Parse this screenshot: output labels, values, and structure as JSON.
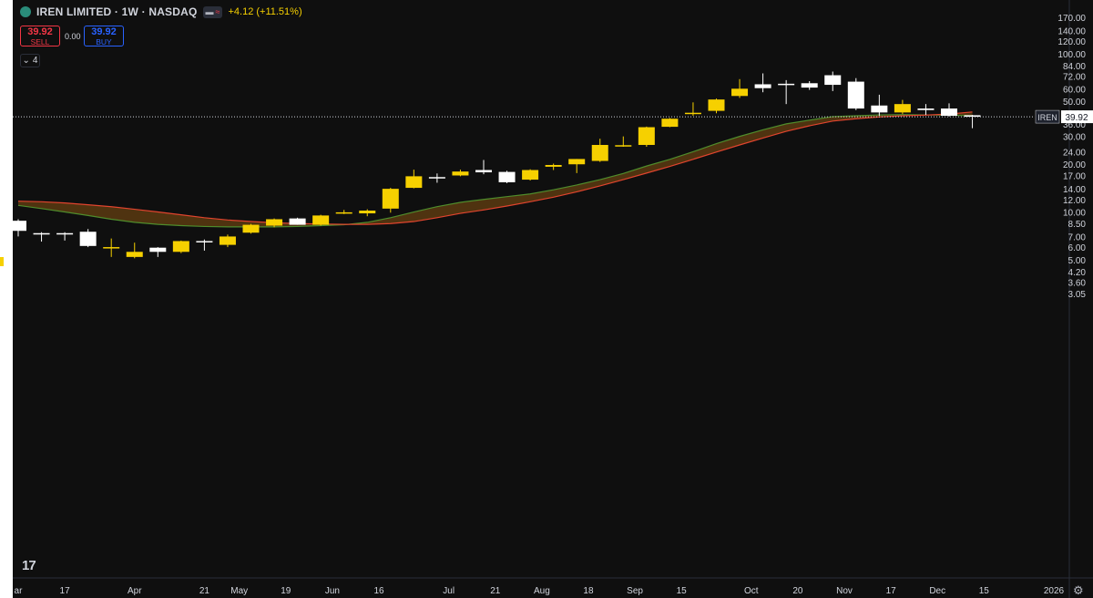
{
  "header": {
    "title": "IREN LIMITED · 1W · NASDAQ",
    "change": "+4.12 (+11.51%)",
    "pill_left": "▬",
    "pill_right": "≈",
    "sell_price": "39.92",
    "sell_label": "SELL",
    "spread": "0.00",
    "buy_price": "39.92",
    "buy_label": "BUY",
    "collapse_count": "4"
  },
  "price_tag": {
    "symbol": "IREN",
    "value": "39.92"
  },
  "logo": "17",
  "colors": {
    "up": "#f6d000",
    "down": "#ffffff",
    "fast_line": "#4f8c2c",
    "slow_line": "#e0442e",
    "band_fill": "#5a3a10",
    "axis_text": "#d1d4dc",
    "background": "#0f0f0f"
  },
  "chart_data": {
    "type": "candlestick",
    "scale": "log",
    "ylim": [
      3.0,
      170
    ],
    "y_ticks": [
      "170.00",
      "140.00",
      "120.00",
      "100.00",
      "84.00",
      "72.00",
      "60.00",
      "50.00",
      "42.00",
      "36.00",
      "30.00",
      "24.00",
      "20.00",
      "17.00",
      "14.00",
      "12.00",
      "10.00",
      "8.50",
      "7.00",
      "6.00",
      "5.00",
      "4.20",
      "3.60",
      "3.05"
    ],
    "x_labels": [
      {
        "text": "ar",
        "week": 0
      },
      {
        "text": "17",
        "week": 2
      },
      {
        "text": "Apr",
        "week": 5
      },
      {
        "text": "21",
        "week": 8
      },
      {
        "text": "May",
        "week": 9.5
      },
      {
        "text": "19",
        "week": 11.5
      },
      {
        "text": "Jun",
        "week": 13.5
      },
      {
        "text": "16",
        "week": 15.5
      },
      {
        "text": "Jul",
        "week": 18.5
      },
      {
        "text": "21",
        "week": 20.5
      },
      {
        "text": "Aug",
        "week": 22.5
      },
      {
        "text": "18",
        "week": 24.5
      },
      {
        "text": "Sep",
        "week": 26.5
      },
      {
        "text": "15",
        "week": 28.5
      },
      {
        "text": "Oct",
        "week": 31.5
      },
      {
        "text": "20",
        "week": 33.5
      },
      {
        "text": "Nov",
        "week": 35.5
      },
      {
        "text": "17",
        "week": 37.5
      },
      {
        "text": "Dec",
        "week": 39.5
      },
      {
        "text": "15",
        "week": 41.5
      },
      {
        "text": "2026",
        "week": 44.5
      }
    ],
    "last_price": 39.92,
    "candles": [
      {
        "o": 8.8,
        "h": 9.0,
        "l": 7.0,
        "c": 7.6
      },
      {
        "o": 7.35,
        "h": 7.45,
        "l": 6.5,
        "c": 7.3
      },
      {
        "o": 7.35,
        "h": 7.45,
        "l": 6.6,
        "c": 7.3
      },
      {
        "o": 7.5,
        "h": 7.8,
        "l": 6.0,
        "c": 6.1
      },
      {
        "o": 5.9,
        "h": 6.8,
        "l": 5.2,
        "c": 6.0
      },
      {
        "o": 5.2,
        "h": 6.4,
        "l": 5.1,
        "c": 5.6
      },
      {
        "o": 5.95,
        "h": 6.0,
        "l": 5.2,
        "c": 5.6
      },
      {
        "o": 5.6,
        "h": 6.6,
        "l": 5.5,
        "c": 6.55
      },
      {
        "o": 6.55,
        "h": 6.7,
        "l": 5.7,
        "c": 6.5
      },
      {
        "o": 6.2,
        "h": 7.2,
        "l": 6.0,
        "c": 7.0
      },
      {
        "o": 7.4,
        "h": 8.4,
        "l": 7.3,
        "c": 8.3
      },
      {
        "o": 8.2,
        "h": 9.1,
        "l": 8.0,
        "c": 9.0
      },
      {
        "o": 9.1,
        "h": 9.2,
        "l": 8.3,
        "c": 8.3
      },
      {
        "o": 8.3,
        "h": 9.6,
        "l": 8.2,
        "c": 9.5
      },
      {
        "o": 9.8,
        "h": 10.3,
        "l": 9.7,
        "c": 9.95
      },
      {
        "o": 9.8,
        "h": 10.4,
        "l": 9.4,
        "c": 10.2
      },
      {
        "o": 10.5,
        "h": 14.2,
        "l": 9.9,
        "c": 14.0
      },
      {
        "o": 14.2,
        "h": 18.5,
        "l": 14.1,
        "c": 16.8
      },
      {
        "o": 16.6,
        "h": 17.5,
        "l": 15.3,
        "c": 16.5
      },
      {
        "o": 17.0,
        "h": 18.5,
        "l": 16.8,
        "c": 18.0
      },
      {
        "o": 18.4,
        "h": 21.3,
        "l": 17.3,
        "c": 17.8
      },
      {
        "o": 17.9,
        "h": 18.2,
        "l": 15.2,
        "c": 15.4
      },
      {
        "o": 16.0,
        "h": 18.6,
        "l": 15.8,
        "c": 18.4
      },
      {
        "o": 19.3,
        "h": 20.2,
        "l": 18.4,
        "c": 19.8
      },
      {
        "o": 20.0,
        "h": 21.6,
        "l": 17.6,
        "c": 21.6
      },
      {
        "o": 21.0,
        "h": 29.0,
        "l": 20.7,
        "c": 26.5
      },
      {
        "o": 26.2,
        "h": 30.0,
        "l": 25.8,
        "c": 26.4
      },
      {
        "o": 26.5,
        "h": 34.6,
        "l": 25.8,
        "c": 34.3
      },
      {
        "o": 34.5,
        "h": 39.2,
        "l": 34.3,
        "c": 38.8
      },
      {
        "o": 41.8,
        "h": 49.2,
        "l": 40.5,
        "c": 42.3
      },
      {
        "o": 43.5,
        "h": 52.0,
        "l": 42.0,
        "c": 51.3
      },
      {
        "o": 54.0,
        "h": 69.0,
        "l": 52.5,
        "c": 60.0
      },
      {
        "o": 64.0,
        "h": 75.0,
        "l": 57.0,
        "c": 60.5
      },
      {
        "o": 64.5,
        "h": 68.0,
        "l": 48.0,
        "c": 63.5
      },
      {
        "o": 65.0,
        "h": 67.0,
        "l": 59.0,
        "c": 61.0
      },
      {
        "o": 73.0,
        "h": 77.0,
        "l": 58.0,
        "c": 63.5
      },
      {
        "o": 66.5,
        "h": 70.0,
        "l": 44.0,
        "c": 45.0
      },
      {
        "o": 47.0,
        "h": 55.0,
        "l": 40.5,
        "c": 42.5
      },
      {
        "o": 42.5,
        "h": 51.0,
        "l": 41.5,
        "c": 48.0
      },
      {
        "o": 45.0,
        "h": 48.0,
        "l": 41.0,
        "c": 44.0
      },
      {
        "o": 45.0,
        "h": 48.5,
        "l": 40.0,
        "c": 40.5
      },
      {
        "o": 40.8,
        "h": 41.0,
        "l": 33.8,
        "c": 39.92
      }
    ],
    "series": [
      {
        "kind": "fast",
        "values": [
          11.0,
          10.5,
          10.0,
          9.5,
          9.0,
          8.6,
          8.35,
          8.2,
          8.1,
          8.05,
          8.05,
          8.05,
          8.1,
          8.2,
          8.3,
          8.6,
          9.2,
          10.0,
          10.8,
          11.5,
          12.0,
          12.5,
          13.0,
          13.8,
          14.8,
          16.0,
          17.5,
          19.5,
          21.5,
          24.0,
          27.0,
          30.0,
          33.0,
          36.0,
          38.0,
          40.0,
          40.5,
          41.0,
          41.2,
          41.0,
          40.8,
          40.6
        ]
      },
      {
        "kind": "slow",
        "values": [
          11.7,
          11.6,
          11.4,
          11.1,
          10.8,
          10.4,
          10.0,
          9.6,
          9.2,
          8.9,
          8.7,
          8.55,
          8.45,
          8.4,
          8.35,
          8.35,
          8.45,
          8.7,
          9.2,
          9.8,
          10.3,
          10.9,
          11.6,
          12.4,
          13.4,
          14.6,
          16.0,
          17.6,
          19.4,
          21.5,
          23.9,
          26.5,
          29.3,
          32.3,
          35.0,
          37.5,
          38.8,
          39.8,
          40.5,
          40.9,
          41.5,
          42.8
        ]
      }
    ]
  }
}
